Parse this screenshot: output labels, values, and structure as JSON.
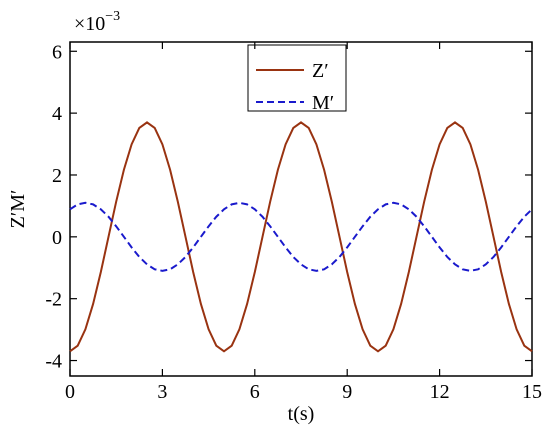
{
  "chart_data": {
    "type": "line",
    "x_label": "t(s)",
    "y_label": "Z′M′",
    "y_multiplier": {
      "base": "×10",
      "exponent": "−3"
    },
    "x": [
      0,
      0.25,
      0.5,
      0.75,
      1,
      1.25,
      1.5,
      1.75,
      2,
      2.25,
      2.5,
      2.75,
      3,
      3.25,
      3.5,
      3.75,
      4,
      4.25,
      4.5,
      4.75,
      5,
      5.25,
      5.5,
      5.75,
      6,
      6.25,
      6.5,
      6.75,
      7,
      7.25,
      7.5,
      7.75,
      8,
      8.25,
      8.5,
      8.75,
      9,
      9.25,
      9.5,
      9.75,
      10,
      10.25,
      10.5,
      10.75,
      11,
      11.25,
      11.5,
      11.75,
      12,
      12.25,
      12.5,
      12.75,
      13,
      13.25,
      13.5,
      13.75,
      14,
      14.25,
      14.5,
      14.75,
      15
    ],
    "series": [
      {
        "name": "Z′",
        "color": "#993311",
        "dash": false,
        "values": [
          -3.7,
          -3.52,
          -2.99,
          -2.17,
          -1.14,
          0,
          1.14,
          2.17,
          2.99,
          3.52,
          3.7,
          3.52,
          2.99,
          2.17,
          1.14,
          0,
          -1.14,
          -2.17,
          -2.99,
          -3.52,
          -3.7,
          -3.52,
          -2.99,
          -2.17,
          -1.14,
          0,
          1.14,
          2.17,
          2.99,
          3.52,
          3.7,
          3.52,
          2.99,
          2.17,
          1.14,
          0,
          -1.14,
          -2.17,
          -2.99,
          -3.52,
          -3.7,
          -3.52,
          -2.99,
          -2.17,
          -1.14,
          0,
          1.14,
          2.17,
          2.99,
          3.52,
          3.7,
          3.52,
          2.99,
          2.17,
          1.14,
          0,
          -1.14,
          -2.17,
          -2.99,
          -3.52,
          -3.7
        ]
      },
      {
        "name": "M′",
        "color": "#1a1acc",
        "dash": true,
        "values": [
          0.89,
          1.05,
          1.1,
          1.05,
          0.89,
          0.65,
          0.34,
          0,
          -0.34,
          -0.65,
          -0.89,
          -1.05,
          -1.1,
          -1.05,
          -0.89,
          -0.65,
          -0.34,
          0,
          0.34,
          0.65,
          0.89,
          1.05,
          1.1,
          1.05,
          0.89,
          0.65,
          0.34,
          0,
          -0.34,
          -0.65,
          -0.89,
          -1.05,
          -1.1,
          -1.05,
          -0.89,
          -0.65,
          -0.34,
          0,
          0.34,
          0.65,
          0.89,
          1.05,
          1.1,
          1.05,
          0.89,
          0.65,
          0.34,
          0,
          -0.34,
          -0.65,
          -0.89,
          -1.05,
          -1.1,
          -1.05,
          -0.89,
          -0.65,
          -0.34,
          0,
          0.34,
          0.65,
          0.89
        ]
      }
    ],
    "xlim": [
      0,
      15
    ],
    "xticks": [
      0,
      3,
      6,
      9,
      12,
      15
    ],
    "ylim": [
      -4.5,
      6.3
    ],
    "yticks": [
      -4,
      -2,
      0,
      2,
      4,
      6
    ],
    "grid": false
  }
}
